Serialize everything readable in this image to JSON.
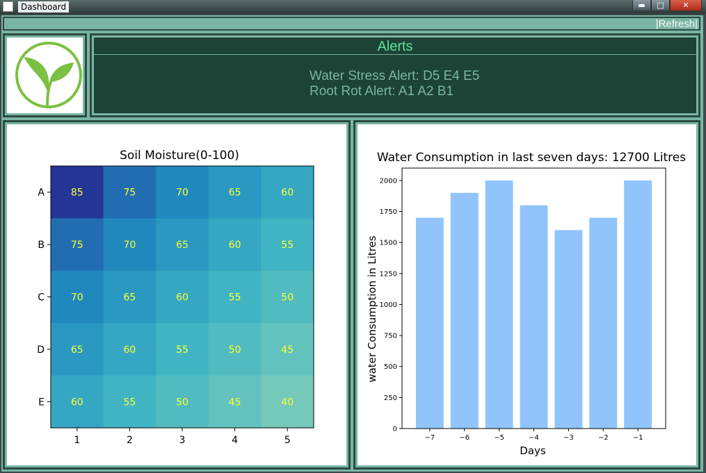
{
  "window": {
    "title": "Dashboard"
  },
  "toolbar": {
    "refresh_label": "|Refresh|"
  },
  "alerts": {
    "title": "Alerts",
    "lines": [
      "Water Stress Alert: D5 E4 E5",
      "Root Rot Alert: A1 A2 B1"
    ]
  },
  "colors": {
    "panel_bg": "#7ab5a3",
    "alerts_bg": "#1d4336",
    "alerts_title": "#5ee39a",
    "bar": "#90c4fb",
    "heat_text": "#ffff33"
  },
  "chart_data": [
    {
      "type": "heatmap",
      "title": "Soil Moisture(0-100)",
      "rows": [
        "A",
        "B",
        "C",
        "D",
        "E"
      ],
      "columns": [
        "1",
        "2",
        "3",
        "4",
        "5"
      ],
      "values": [
        [
          85,
          75,
          70,
          65,
          60
        ],
        [
          75,
          70,
          65,
          60,
          55
        ],
        [
          70,
          65,
          60,
          55,
          50
        ],
        [
          65,
          60,
          55,
          50,
          45
        ],
        [
          60,
          55,
          50,
          45,
          40
        ]
      ],
      "value_range": [
        40,
        85
      ]
    },
    {
      "type": "bar",
      "title": "Water Consumption in last seven days: 12700 Litres",
      "xlabel": "Days",
      "ylabel": "water Consumption in Litres",
      "categories": [
        "−7",
        "−6",
        "−5",
        "−4",
        "−3",
        "−2",
        "−1"
      ],
      "values": [
        1700,
        1900,
        2000,
        1800,
        1600,
        1700,
        2000
      ],
      "ylim": [
        0,
        2100
      ],
      "yticks": [
        0,
        250,
        500,
        750,
        1000,
        1250,
        1500,
        1750,
        2000
      ]
    }
  ]
}
